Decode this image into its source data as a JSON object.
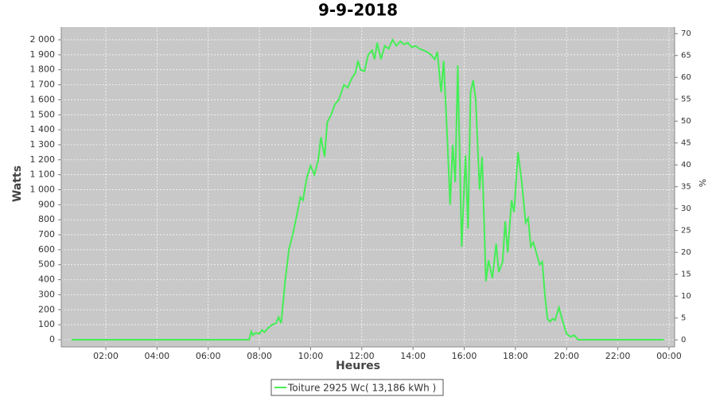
{
  "chart_data": {
    "type": "line",
    "title": "9-9-2018",
    "xlabel": "Heures",
    "ylabel": "Watts",
    "y2label": "%",
    "x": [
      0.66,
      7.0,
      7.6,
      7.68,
      7.75,
      7.85,
      8.0,
      8.1,
      8.2,
      8.35,
      8.5,
      8.65,
      8.75,
      8.85,
      9.0,
      9.15,
      9.3,
      9.45,
      9.6,
      9.7,
      9.85,
      10.0,
      10.15,
      10.3,
      10.4,
      10.55,
      10.65,
      10.8,
      10.95,
      11.1,
      11.3,
      11.45,
      11.6,
      11.75,
      11.85,
      11.95,
      12.1,
      12.25,
      12.4,
      12.5,
      12.6,
      12.75,
      12.9,
      13.05,
      13.2,
      13.35,
      13.5,
      13.65,
      13.8,
      13.95,
      14.1,
      14.25,
      14.4,
      14.55,
      14.7,
      14.85,
      14.95,
      15.1,
      15.2,
      15.35,
      15.45,
      15.55,
      15.65,
      15.75,
      15.9,
      16.05,
      16.15,
      16.25,
      16.35,
      16.45,
      16.6,
      16.7,
      16.85,
      16.95,
      17.1,
      17.25,
      17.35,
      17.5,
      17.6,
      17.7,
      17.85,
      17.95,
      18.1,
      18.25,
      18.4,
      18.5,
      18.6,
      18.7,
      18.85,
      18.95,
      19.05,
      19.15,
      19.25,
      19.35,
      19.45,
      19.55,
      19.7,
      19.85,
      20.0,
      20.15,
      20.3,
      20.45,
      23.8
    ],
    "series": [
      {
        "name": "Toiture 2925 Wc( 13,186 kWh )",
        "color": "#44ee55",
        "values": [
          0,
          0,
          0,
          55,
          30,
          45,
          40,
          65,
          50,
          80,
          100,
          110,
          150,
          110,
          380,
          600,
          700,
          820,
          950,
          930,
          1080,
          1160,
          1100,
          1200,
          1350,
          1220,
          1450,
          1500,
          1570,
          1600,
          1700,
          1680,
          1740,
          1780,
          1860,
          1800,
          1790,
          1900,
          1930,
          1870,
          1980,
          1870,
          1960,
          1940,
          2000,
          1960,
          1990,
          1970,
          1980,
          1950,
          1960,
          1940,
          1930,
          1920,
          1900,
          1870,
          1920,
          1650,
          1860,
          1300,
          900,
          1300,
          1050,
          1830,
          620,
          1230,
          740,
          1650,
          1730,
          1600,
          1000,
          1220,
          390,
          530,
          410,
          640,
          450,
          520,
          790,
          580,
          930,
          850,
          1250,
          1050,
          780,
          810,
          620,
          650,
          560,
          500,
          520,
          300,
          140,
          120,
          140,
          130,
          215,
          120,
          40,
          20,
          30,
          0,
          0
        ]
      }
    ],
    "xlim": [
      0.26,
      24.22
    ],
    "xticks": [
      {
        "value": 2,
        "label": "02:00"
      },
      {
        "value": 4,
        "label": "04:00"
      },
      {
        "value": 6,
        "label": "06:00"
      },
      {
        "value": 8,
        "label": "08:00"
      },
      {
        "value": 10,
        "label": "10:00"
      },
      {
        "value": 12,
        "label": "12:00"
      },
      {
        "value": 14,
        "label": "14:00"
      },
      {
        "value": 16,
        "label": "16:00"
      },
      {
        "value": 18,
        "label": "18:00"
      },
      {
        "value": 20,
        "label": "20:00"
      },
      {
        "value": 22,
        "label": "22:00"
      },
      {
        "value": 24,
        "label": "00:00"
      }
    ],
    "ylim": [
      -48,
      2085
    ],
    "yticks": [
      0,
      100,
      200,
      300,
      400,
      500,
      600,
      700,
      800,
      900,
      {
        "value": 1000,
        "label": "1 000"
      },
      {
        "value": 1100,
        "label": "1 100"
      },
      {
        "value": 1200,
        "label": "1 200"
      },
      {
        "value": 1300,
        "label": "1 300"
      },
      {
        "value": 1400,
        "label": "1 400"
      },
      {
        "value": 1500,
        "label": "1 500"
      },
      {
        "value": 1600,
        "label": "1 600"
      },
      {
        "value": 1700,
        "label": "1 700"
      },
      {
        "value": 1800,
        "label": "1 800"
      },
      {
        "value": 1900,
        "label": "1 900"
      },
      {
        "value": 2000,
        "label": "2 000"
      }
    ],
    "y2lim": [
      -1.6,
      71.5
    ],
    "y2ticks": [
      0,
      5,
      10,
      15,
      20,
      25,
      30,
      35,
      40,
      45,
      50,
      55,
      60,
      65,
      70
    ],
    "grid": true,
    "legend": "bottom"
  }
}
